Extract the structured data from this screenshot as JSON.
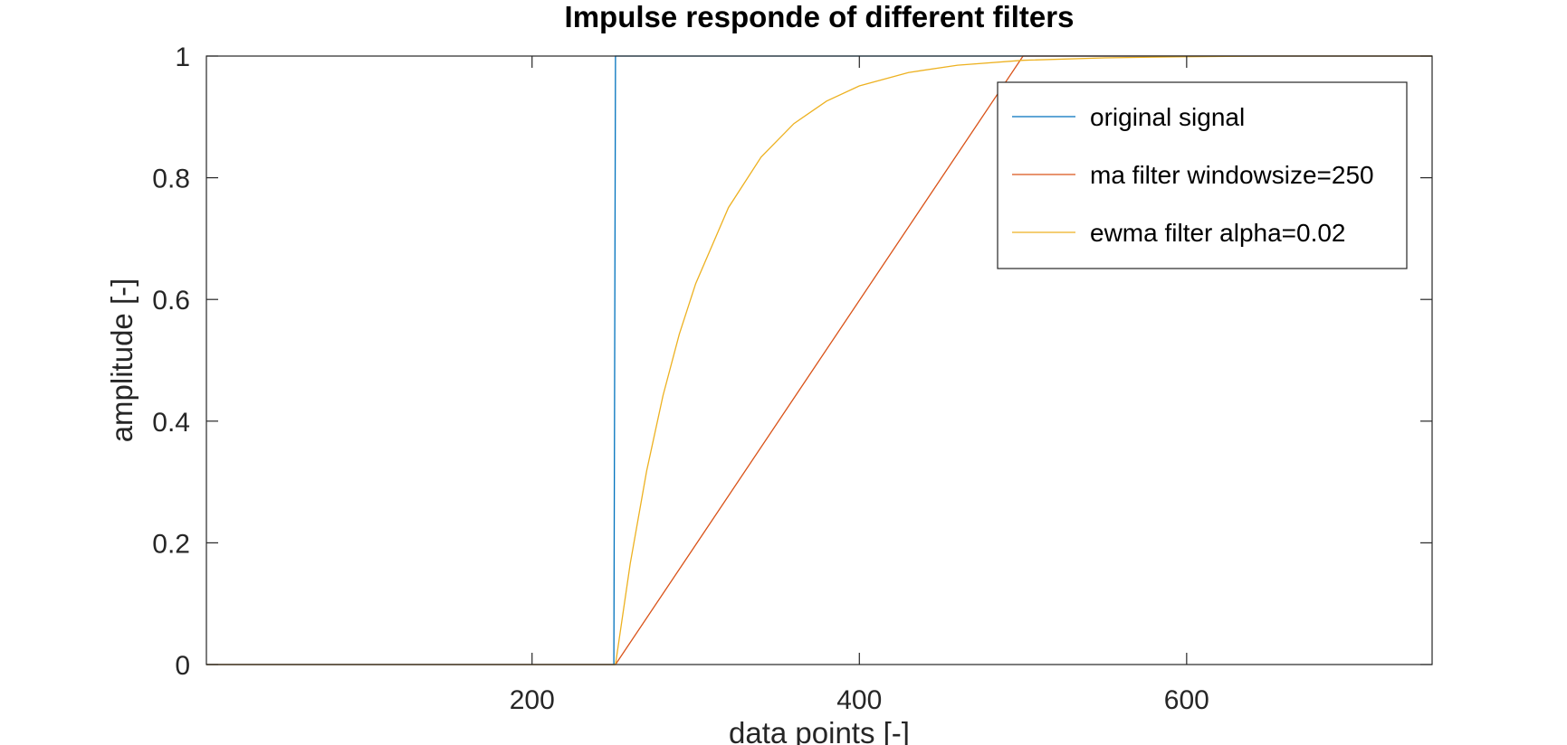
{
  "chart_data": {
    "type": "line",
    "title": "Impulse responde of different filters",
    "xlabel": "data points [-]",
    "ylabel": "amplitude [-]",
    "xlim": [
      1,
      750
    ],
    "ylim": [
      0,
      1
    ],
    "xticks": [
      200,
      400,
      600
    ],
    "xtick_labels": [
      "200",
      "400",
      "600"
    ],
    "yticks": [
      0,
      0.2,
      0.4,
      0.6,
      0.8,
      1
    ],
    "ytick_labels": [
      "0",
      "0.2",
      "0.4",
      "0.6",
      "0.8",
      "1"
    ],
    "grid": false,
    "legend_position": "top-right",
    "series": [
      {
        "name": "original signal",
        "color": "#0072BD",
        "x": [
          1,
          250,
          251,
          750
        ],
        "y": [
          0,
          0,
          1,
          1
        ]
      },
      {
        "name": "ma filter windowsize=250",
        "color": "#D95319",
        "x": [
          1,
          251,
          500,
          750
        ],
        "y": [
          0,
          0,
          1,
          1
        ]
      },
      {
        "name": "ewma filter alpha=0.02",
        "color": "#EDB120",
        "x": [
          1,
          251,
          260,
          270,
          280,
          290,
          300,
          320,
          340,
          360,
          380,
          400,
          430,
          460,
          500,
          550,
          600,
          650,
          700,
          750
        ],
        "y": [
          0,
          0,
          0.166,
          0.318,
          0.442,
          0.543,
          0.626,
          0.751,
          0.834,
          0.889,
          0.926,
          0.951,
          0.973,
          0.985,
          0.993,
          0.997,
          0.999,
          1.0,
          1.0,
          1.0
        ]
      }
    ]
  }
}
